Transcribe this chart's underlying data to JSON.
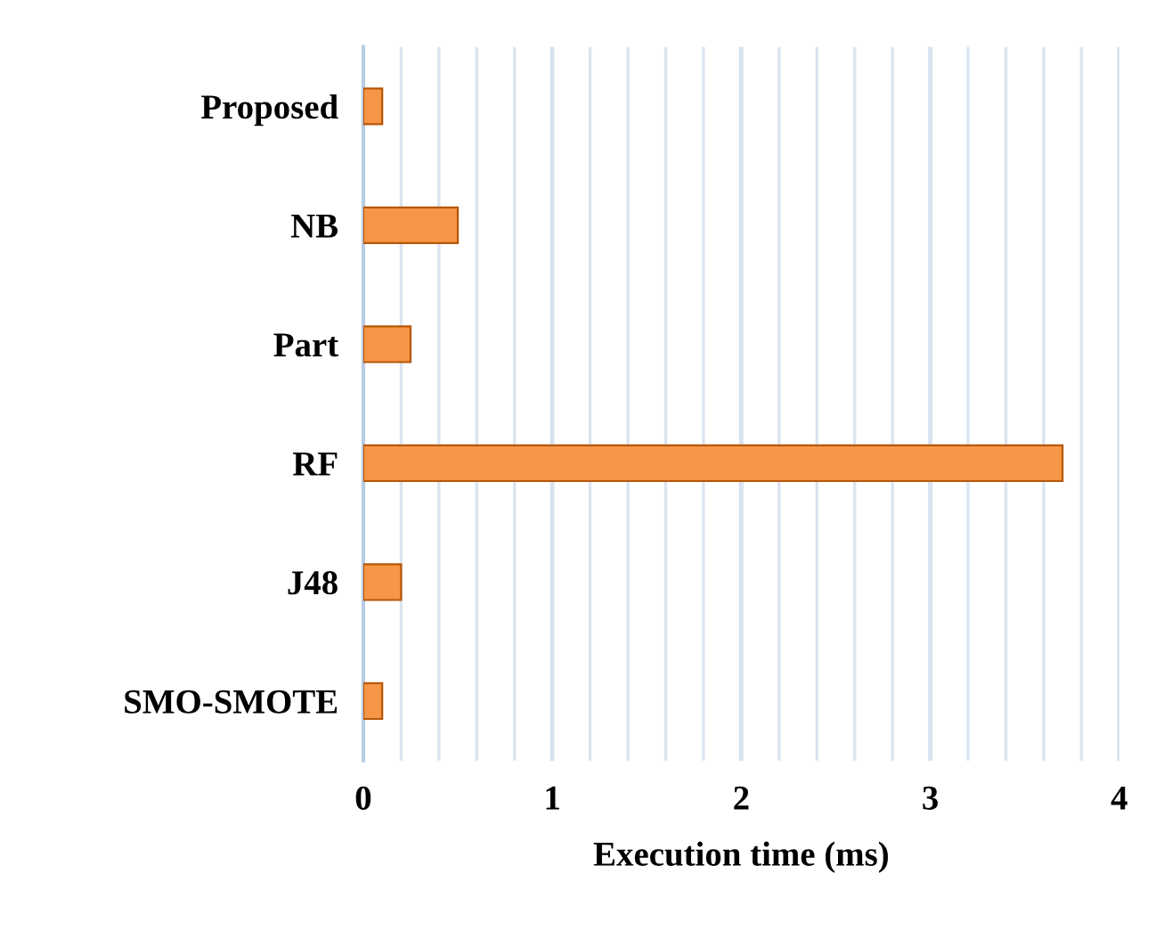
{
  "chart_data": {
    "type": "bar",
    "orientation": "horizontal",
    "xlabel": "Execution time (ms)",
    "categories": [
      "Proposed",
      "NB",
      "Part",
      "RF",
      "J48",
      "SMO-SMOTE"
    ],
    "values": [
      0.1,
      0.5,
      0.25,
      3.7,
      0.2,
      0.1
    ],
    "color": "#f79646",
    "xlim": [
      0,
      4
    ],
    "xticks": [
      0,
      {
        "value": 0.2,
        "label": null
      },
      {
        "value": 0.4,
        "label": null
      },
      {
        "value": 0.6,
        "label": null
      },
      {
        "value": 0.8,
        "label": null
      },
      1,
      {
        "value": 1.2,
        "label": null
      },
      {
        "value": 1.4,
        "label": null
      },
      {
        "value": 1.6,
        "label": null
      },
      {
        "value": 1.8,
        "label": null
      },
      2,
      {
        "value": 2.2,
        "label": null
      },
      {
        "value": 2.4,
        "label": null
      },
      {
        "value": 2.6,
        "label": null
      },
      {
        "value": 2.8,
        "label": null
      },
      3,
      {
        "value": 3.2,
        "label": null
      },
      {
        "value": 3.4,
        "label": null
      },
      {
        "value": 3.6,
        "label": null
      },
      {
        "value": 3.8,
        "label": null
      },
      4
    ],
    "grid": "x",
    "legend": false
  }
}
